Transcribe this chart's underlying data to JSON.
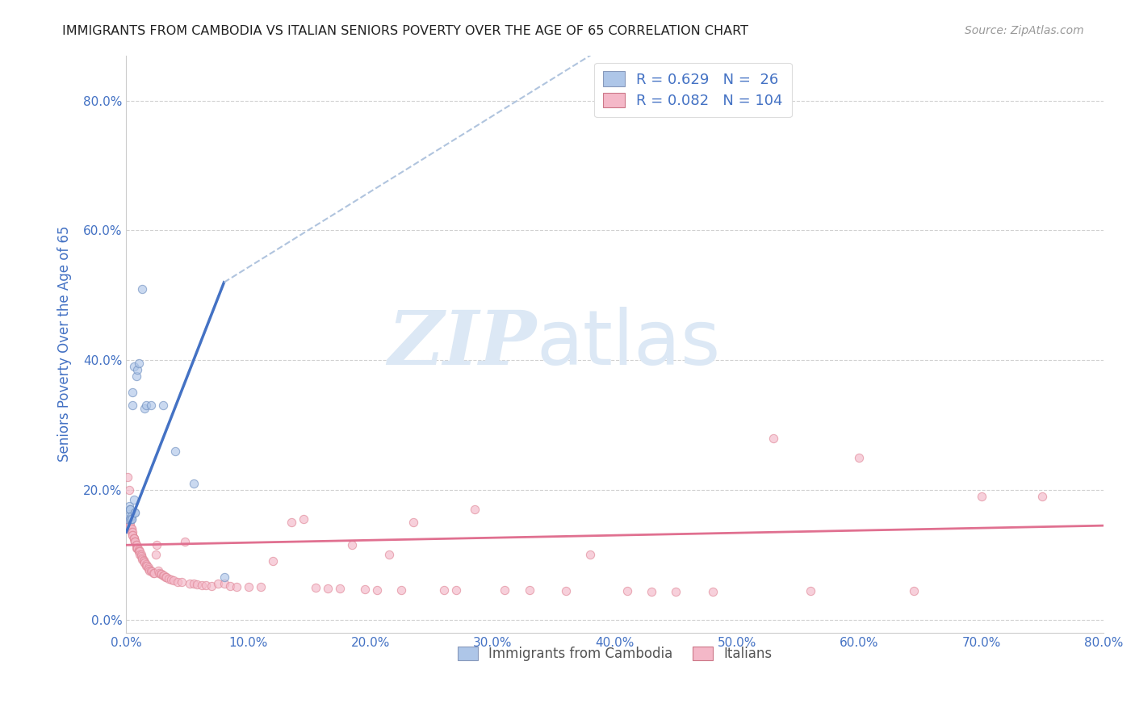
{
  "title": "IMMIGRANTS FROM CAMBODIA VS ITALIAN SENIORS POVERTY OVER THE AGE OF 65 CORRELATION CHART",
  "source": "Source: ZipAtlas.com",
  "ylabel": "Seniors Poverty Over the Age of 65",
  "xlabel": "",
  "xlim": [
    0.0,
    0.8
  ],
  "ylim": [
    -0.02,
    0.87
  ],
  "yticks": [
    0.0,
    0.2,
    0.4,
    0.6,
    0.8
  ],
  "xticks": [
    0.0,
    0.1,
    0.2,
    0.3,
    0.4,
    0.5,
    0.6,
    0.7,
    0.8
  ],
  "legend_entries": [
    {
      "label": "Immigrants from Cambodia",
      "color": "#aec6e8",
      "R": "0.629",
      "N": "26"
    },
    {
      "label": "Italians",
      "color": "#f4b8c8",
      "R": "0.082",
      "N": "104"
    }
  ],
  "legend_text_color": "#4472c4",
  "watermark_zip": "ZIP",
  "watermark_atlas": "atlas",
  "watermark_color": "#dce8f5",
  "cambodia_scatter": [
    [
      0.001,
      0.155
    ],
    [
      0.002,
      0.175
    ],
    [
      0.002,
      0.16
    ],
    [
      0.003,
      0.17
    ],
    [
      0.003,
      0.155
    ],
    [
      0.003,
      0.17
    ],
    [
      0.004,
      0.155
    ],
    [
      0.004,
      0.16
    ],
    [
      0.004,
      0.155
    ],
    [
      0.005,
      0.33
    ],
    [
      0.005,
      0.35
    ],
    [
      0.006,
      0.39
    ],
    [
      0.006,
      0.185
    ],
    [
      0.007,
      0.165
    ],
    [
      0.007,
      0.165
    ],
    [
      0.008,
      0.375
    ],
    [
      0.009,
      0.385
    ],
    [
      0.01,
      0.395
    ],
    [
      0.013,
      0.51
    ],
    [
      0.015,
      0.325
    ],
    [
      0.016,
      0.33
    ],
    [
      0.02,
      0.33
    ],
    [
      0.03,
      0.33
    ],
    [
      0.04,
      0.26
    ],
    [
      0.055,
      0.21
    ],
    [
      0.08,
      0.065
    ]
  ],
  "italian_scatter": [
    [
      0.001,
      0.22
    ],
    [
      0.002,
      0.2
    ],
    [
      0.002,
      0.155
    ],
    [
      0.003,
      0.155
    ],
    [
      0.003,
      0.15
    ],
    [
      0.003,
      0.145
    ],
    [
      0.004,
      0.14
    ],
    [
      0.004,
      0.14
    ],
    [
      0.004,
      0.135
    ],
    [
      0.005,
      0.135
    ],
    [
      0.005,
      0.13
    ],
    [
      0.005,
      0.13
    ],
    [
      0.006,
      0.125
    ],
    [
      0.006,
      0.125
    ],
    [
      0.006,
      0.125
    ],
    [
      0.007,
      0.12
    ],
    [
      0.007,
      0.12
    ],
    [
      0.007,
      0.12
    ],
    [
      0.007,
      0.12
    ],
    [
      0.008,
      0.115
    ],
    [
      0.008,
      0.115
    ],
    [
      0.008,
      0.11
    ],
    [
      0.009,
      0.11
    ],
    [
      0.009,
      0.11
    ],
    [
      0.009,
      0.11
    ],
    [
      0.01,
      0.108
    ],
    [
      0.01,
      0.105
    ],
    [
      0.01,
      0.105
    ],
    [
      0.011,
      0.105
    ],
    [
      0.011,
      0.1
    ],
    [
      0.012,
      0.1
    ],
    [
      0.012,
      0.098
    ],
    [
      0.013,
      0.095
    ],
    [
      0.013,
      0.093
    ],
    [
      0.014,
      0.092
    ],
    [
      0.014,
      0.09
    ],
    [
      0.015,
      0.088
    ],
    [
      0.015,
      0.088
    ],
    [
      0.016,
      0.085
    ],
    [
      0.016,
      0.083
    ],
    [
      0.017,
      0.083
    ],
    [
      0.018,
      0.08
    ],
    [
      0.018,
      0.078
    ],
    [
      0.019,
      0.076
    ],
    [
      0.02,
      0.076
    ],
    [
      0.021,
      0.074
    ],
    [
      0.022,
      0.072
    ],
    [
      0.023,
      0.072
    ],
    [
      0.024,
      0.1
    ],
    [
      0.025,
      0.115
    ],
    [
      0.026,
      0.075
    ],
    [
      0.027,
      0.072
    ],
    [
      0.028,
      0.07
    ],
    [
      0.029,
      0.07
    ],
    [
      0.03,
      0.068
    ],
    [
      0.031,
      0.068
    ],
    [
      0.032,
      0.066
    ],
    [
      0.033,
      0.065
    ],
    [
      0.035,
      0.063
    ],
    [
      0.037,
      0.062
    ],
    [
      0.039,
      0.06
    ],
    [
      0.042,
      0.058
    ],
    [
      0.045,
      0.058
    ],
    [
      0.048,
      0.12
    ],
    [
      0.052,
      0.056
    ],
    [
      0.055,
      0.055
    ],
    [
      0.058,
      0.054
    ],
    [
      0.062,
      0.053
    ],
    [
      0.065,
      0.053
    ],
    [
      0.07,
      0.052
    ],
    [
      0.075,
      0.055
    ],
    [
      0.08,
      0.056
    ],
    [
      0.085,
      0.052
    ],
    [
      0.09,
      0.051
    ],
    [
      0.1,
      0.05
    ],
    [
      0.11,
      0.05
    ],
    [
      0.12,
      0.09
    ],
    [
      0.135,
      0.15
    ],
    [
      0.145,
      0.155
    ],
    [
      0.155,
      0.049
    ],
    [
      0.165,
      0.048
    ],
    [
      0.175,
      0.048
    ],
    [
      0.185,
      0.115
    ],
    [
      0.195,
      0.047
    ],
    [
      0.205,
      0.046
    ],
    [
      0.215,
      0.1
    ],
    [
      0.225,
      0.046
    ],
    [
      0.235,
      0.15
    ],
    [
      0.26,
      0.045
    ],
    [
      0.27,
      0.046
    ],
    [
      0.285,
      0.17
    ],
    [
      0.31,
      0.045
    ],
    [
      0.33,
      0.045
    ],
    [
      0.36,
      0.044
    ],
    [
      0.38,
      0.1
    ],
    [
      0.41,
      0.044
    ],
    [
      0.43,
      0.043
    ],
    [
      0.45,
      0.043
    ],
    [
      0.48,
      0.043
    ],
    [
      0.53,
      0.28
    ],
    [
      0.56,
      0.044
    ],
    [
      0.6,
      0.25
    ],
    [
      0.645,
      0.044
    ],
    [
      0.7,
      0.19
    ],
    [
      0.75,
      0.19
    ]
  ],
  "cambodia_line": {
    "x0": 0.0,
    "y0": 0.135,
    "x1": 0.08,
    "y1": 0.52
  },
  "cambodia_line_ext": {
    "x0": 0.08,
    "y0": 0.52,
    "x1": 0.38,
    "y1": 0.87
  },
  "italian_line": {
    "x0": 0.0,
    "y0": 0.115,
    "x1": 0.8,
    "y1": 0.145
  },
  "scatter_size": 55,
  "scatter_alpha": 0.65,
  "scatter_edge_alpha": 0.8,
  "background_color": "#ffffff",
  "grid_color": "#cccccc",
  "axis_label_color": "#4472c4",
  "tick_label_color": "#4472c4",
  "cambodia_line_color": "#4472c4",
  "italian_line_color": "#e07090",
  "ext_line_color": "#b0c4de"
}
